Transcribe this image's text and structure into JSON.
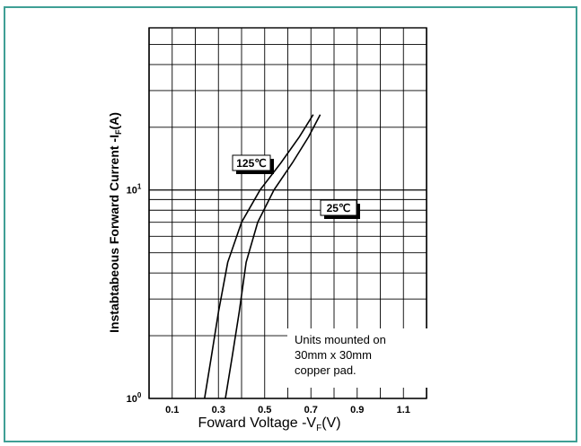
{
  "chart_data": {
    "type": "line",
    "xlabel": "Foward Voltage -VF(V)",
    "ylabel": "Instabtabeous Forward Current -IF(A)",
    "x_ticks": [
      "0.1",
      "0.3",
      "0.5",
      "0.7",
      "0.9",
      "1.1"
    ],
    "y_ticks": [
      {
        "base": "10",
        "exp": "0"
      },
      {
        "base": "10",
        "exp": "1"
      }
    ],
    "xlim": [
      0.0,
      1.2
    ],
    "ylim": [
      1,
      60
    ],
    "y_scale": "log",
    "grid": true,
    "series": [
      {
        "name": "125℃",
        "x": [
          0.24,
          0.27,
          0.3,
          0.34,
          0.4,
          0.48,
          0.57,
          0.65,
          0.71
        ],
        "y": [
          1.0,
          1.6,
          2.6,
          4.5,
          7.0,
          10.0,
          13.5,
          18.0,
          23.0
        ]
      },
      {
        "name": "25℃",
        "x": [
          0.33,
          0.36,
          0.39,
          0.42,
          0.47,
          0.54,
          0.62,
          0.69,
          0.74
        ],
        "y": [
          1.0,
          1.6,
          2.6,
          4.5,
          7.0,
          10.0,
          13.5,
          18.0,
          23.0
        ]
      }
    ],
    "annotations": [
      "Units mounted on",
      "30mm x 30mm",
      "copper pad."
    ]
  },
  "colors": {
    "frame": "#3f9f95",
    "plot": "#000000",
    "background": "#ffffff"
  }
}
